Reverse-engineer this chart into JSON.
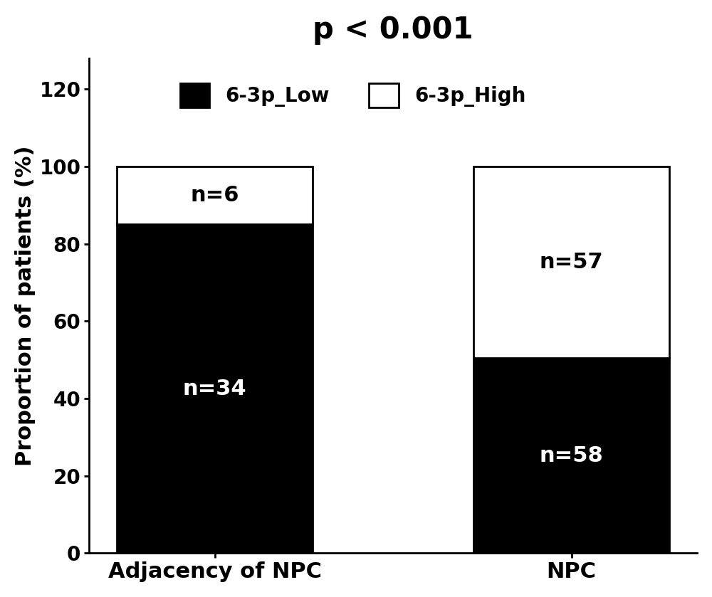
{
  "categories": [
    "Adjacency of NPC",
    "NPC"
  ],
  "low_values": [
    85.0,
    50.43
  ],
  "high_values": [
    15.0,
    49.57
  ],
  "low_counts": [
    "n=34",
    "n=58"
  ],
  "high_counts": [
    "n=6",
    "n=57"
  ],
  "low_color": "#000000",
  "high_color": "#ffffff",
  "bar_edge_color": "#000000",
  "title": "p < 0.001",
  "ylabel": "Proportion of patients (%)",
  "ylim": [
    0,
    128
  ],
  "yticks": [
    0,
    20,
    40,
    60,
    80,
    100,
    120
  ],
  "legend_labels": [
    "6-3p_Low",
    "6-3p_High"
  ],
  "title_fontsize": 30,
  "label_fontsize": 22,
  "tick_fontsize": 20,
  "legend_fontsize": 20,
  "annotation_fontsize": 22,
  "bar_width": 0.55,
  "figsize": [
    10.0,
    8.39
  ],
  "dpi": 100
}
